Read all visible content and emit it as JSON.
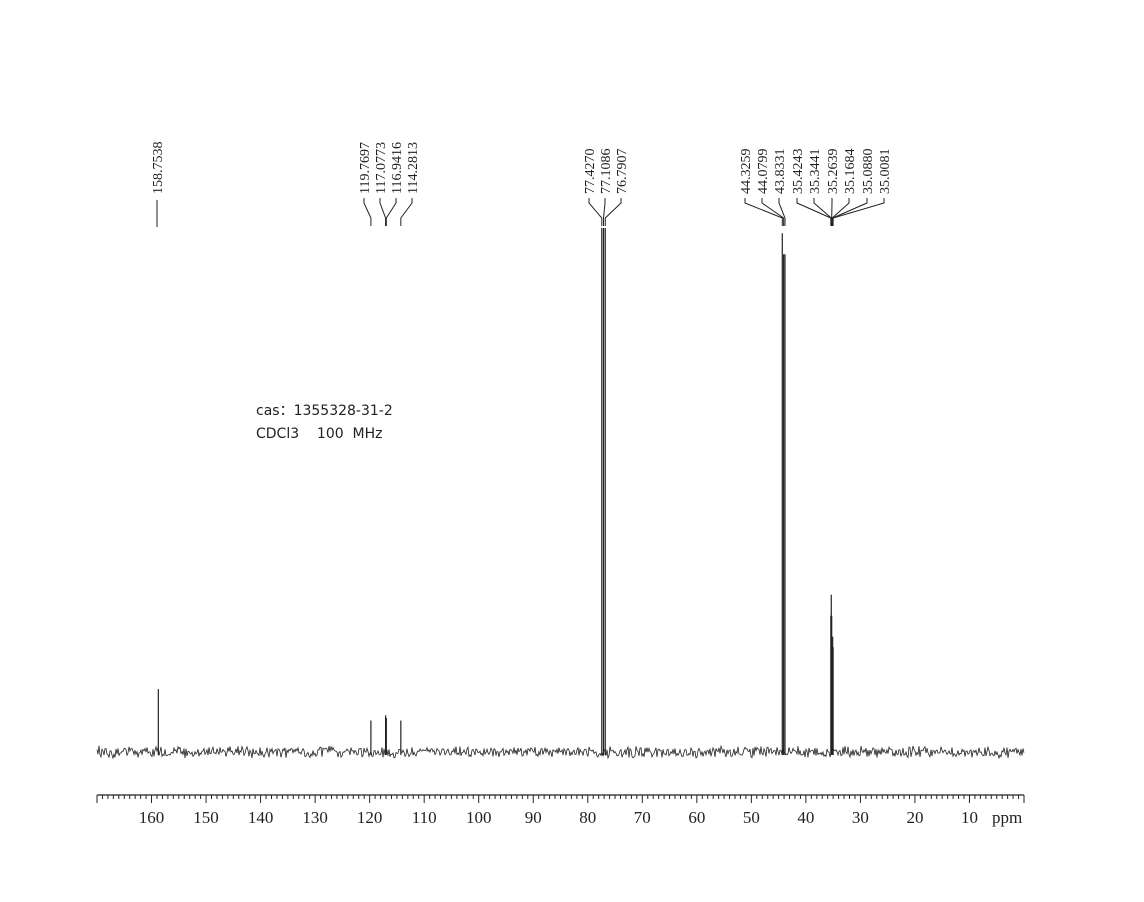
{
  "chart_data": {
    "type": "line",
    "title": "",
    "xlabel": "ppm",
    "ylabel": "",
    "xlim": [
      170,
      0
    ],
    "x_reversed": true,
    "grid": false,
    "x_ticks": [
      160,
      150,
      140,
      130,
      120,
      110,
      100,
      90,
      80,
      70,
      60,
      50,
      40,
      30,
      20,
      10
    ],
    "annotations": [
      "cas：1355328-31-2",
      "CDCl3    100  MHz"
    ],
    "peaks": [
      {
        "label": "158.7538",
        "ppm": 158.7538,
        "rel_intensity": 0.12
      },
      {
        "label": "119.7697",
        "ppm": 119.7697,
        "rel_intensity": 0.06
      },
      {
        "label": "117.0773",
        "ppm": 117.0773,
        "rel_intensity": 0.07
      },
      {
        "label": "116.9416",
        "ppm": 116.9416,
        "rel_intensity": 0.065
      },
      {
        "label": "114.2813",
        "ppm": 114.2813,
        "rel_intensity": 0.06
      },
      {
        "label": "77.4270",
        "ppm": 77.427,
        "rel_intensity": 1.0
      },
      {
        "label": "77.1086",
        "ppm": 77.1086,
        "rel_intensity": 1.0
      },
      {
        "label": "76.7907",
        "ppm": 76.7907,
        "rel_intensity": 1.0
      },
      {
        "label": "44.3259",
        "ppm": 44.3259,
        "rel_intensity": 0.99
      },
      {
        "label": "44.0799",
        "ppm": 44.0799,
        "rel_intensity": 0.95
      },
      {
        "label": "43.8331",
        "ppm": 43.8331,
        "rel_intensity": 0.95
      },
      {
        "label": "35.4243",
        "ppm": 35.4243,
        "rel_intensity": 0.26
      },
      {
        "label": "35.3441",
        "ppm": 35.3441,
        "rel_intensity": 0.3
      },
      {
        "label": "35.2639",
        "ppm": 35.2639,
        "rel_intensity": 0.26
      },
      {
        "label": "35.1684",
        "ppm": 35.1684,
        "rel_intensity": 0.2
      },
      {
        "label": "35.0880",
        "ppm": 35.088,
        "rel_intensity": 0.22
      },
      {
        "label": "35.0081",
        "ppm": 35.0081,
        "rel_intensity": 0.2
      }
    ],
    "colors": {
      "trace": "#222222",
      "axis": "#222222"
    }
  }
}
